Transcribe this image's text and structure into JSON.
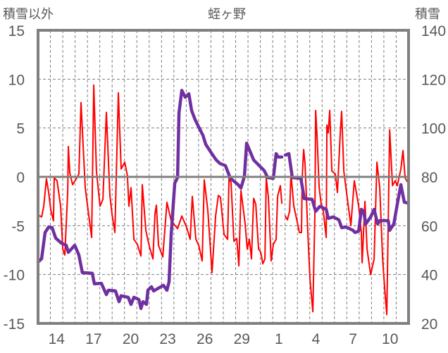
{
  "chart_data": {
    "type": "line",
    "title": "蛭ヶ野",
    "ylabel_left": "積雪以外",
    "ylabel_right": "積雪",
    "x_unit": "days from start of plotted range (first day = 13)",
    "xlim": [
      0,
      30
    ],
    "ylim_left": [
      -15,
      15
    ],
    "ylim_right": [
      20,
      140
    ],
    "yticks_left": [
      "15",
      "10",
      "5",
      "0",
      "-5",
      "-10",
      "-15"
    ],
    "yticks_right": [
      "140",
      "120",
      "100",
      "80",
      "60",
      "40",
      "20"
    ],
    "xtick_labels": [
      {
        "day": 1.5,
        "label": "14"
      },
      {
        "day": 4.5,
        "label": "17"
      },
      {
        "day": 7.5,
        "label": "20"
      },
      {
        "day": 10.5,
        "label": "23"
      },
      {
        "day": 13.5,
        "label": "26"
      },
      {
        "day": 16.5,
        "label": "29"
      },
      {
        "day": 19.5,
        "label": "1"
      },
      {
        "day": 22.5,
        "label": "4"
      },
      {
        "day": 25.5,
        "label": "7"
      },
      {
        "day": 28.5,
        "label": "10"
      }
    ],
    "grid": true,
    "colors": {
      "frame": "#808080",
      "grid": "#7f7f7f",
      "text": "#595959"
    },
    "series": [
      {
        "name": "積雪以外",
        "axis": "left",
        "color": "#ff0000",
        "points": [
          [
            0,
            -3.9
          ],
          [
            0.29,
            -4.1
          ],
          [
            0.46,
            -3.0
          ],
          [
            0.68,
            -0.2
          ],
          [
            0.86,
            -1.6
          ],
          [
            1.03,
            -3.4
          ],
          [
            1.25,
            -4.5
          ],
          [
            1.31,
            -0.1
          ],
          [
            1.54,
            -0.4
          ],
          [
            1.83,
            -3.0
          ],
          [
            2.0,
            -7.4
          ],
          [
            2.17,
            -8.0
          ],
          [
            2.4,
            -1.6
          ],
          [
            2.45,
            3.1
          ],
          [
            2.57,
            0.4
          ],
          [
            2.8,
            -0.8
          ],
          [
            3.14,
            -0.1
          ],
          [
            3.31,
            0.3
          ],
          [
            3.48,
            7.6
          ],
          [
            3.82,
            -1.1
          ],
          [
            4.11,
            -4.0
          ],
          [
            4.34,
            -6.2
          ],
          [
            4.51,
            9.4
          ],
          [
            4.73,
            0.6
          ],
          [
            5.02,
            -3.0
          ],
          [
            5.25,
            -2.3
          ],
          [
            5.53,
            6.6
          ],
          [
            5.82,
            -1.9
          ],
          [
            5.99,
            -3.8
          ],
          [
            6.22,
            -5.7
          ],
          [
            6.5,
            8.6
          ],
          [
            6.73,
            0.8
          ],
          [
            7.02,
            1.5
          ],
          [
            7.24,
            0.1
          ],
          [
            7.36,
            -3.0
          ],
          [
            7.53,
            -1.1
          ],
          [
            7.76,
            -6.4
          ],
          [
            8.04,
            -6.9
          ],
          [
            8.33,
            -8.1
          ],
          [
            8.44,
            -0.8
          ],
          [
            8.73,
            -5.5
          ],
          [
            9.01,
            -7.1
          ],
          [
            9.3,
            -8.4
          ],
          [
            9.47,
            -3.8
          ],
          [
            9.58,
            -2.9
          ],
          [
            9.75,
            -7.0
          ],
          [
            10.1,
            -8.2
          ],
          [
            10.44,
            -2.6
          ],
          [
            10.78,
            -4.5
          ],
          [
            11.3,
            -5.3
          ],
          [
            11.64,
            -4.0
          ],
          [
            12.04,
            -5.2
          ],
          [
            12.32,
            -6.4
          ],
          [
            12.49,
            -2.0
          ],
          [
            12.78,
            -6.4
          ],
          [
            13.01,
            -7.0
          ],
          [
            13.29,
            -8.6
          ],
          [
            13.46,
            -0.3
          ],
          [
            13.75,
            -3.5
          ],
          [
            14.09,
            -9.8
          ],
          [
            14.38,
            -4.0
          ],
          [
            14.6,
            -1.9
          ],
          [
            14.77,
            -2.1
          ],
          [
            15.06,
            -5.9
          ],
          [
            15.35,
            -6.4
          ],
          [
            15.46,
            -0.1
          ],
          [
            15.63,
            -0.6
          ],
          [
            15.86,
            -6.6
          ],
          [
            16.09,
            -6.3
          ],
          [
            16.26,
            -9.1
          ],
          [
            16.43,
            -1.4
          ],
          [
            16.77,
            -4.8
          ],
          [
            16.94,
            -7.4
          ],
          [
            17.11,
            -6.4
          ],
          [
            17.28,
            -8.4
          ],
          [
            17.46,
            -2.2
          ],
          [
            17.63,
            -2.8
          ],
          [
            17.86,
            -7.4
          ],
          [
            18.03,
            -7.7
          ],
          [
            18.2,
            -8.9
          ],
          [
            18.37,
            -8.4
          ],
          [
            18.48,
            -0.1
          ],
          [
            18.65,
            -2.1
          ],
          [
            18.88,
            -8.6
          ],
          [
            19.05,
            -6.9
          ],
          [
            19.28,
            -6.4
          ],
          [
            19.4,
            -2.0
          ],
          [
            19.62,
            -0.9
          ],
          [
            19.74,
            -2.7
          ],
          null,
          [
            20.02,
            -4.0
          ],
          [
            20.19,
            -4.4
          ],
          [
            20.37,
            -3.5
          ],
          [
            20.48,
            0.3
          ],
          [
            20.71,
            -3.0
          ],
          [
            20.94,
            -4.3
          ],
          [
            21.16,
            -5.7
          ],
          [
            21.33,
            -5.7
          ],
          [
            21.39,
            -0.1
          ],
          [
            21.51,
            2.8
          ],
          [
            21.62,
            1.3
          ],
          [
            21.85,
            -5.9
          ],
          [
            22.02,
            -10.5
          ],
          [
            22.25,
            -13.8
          ],
          [
            22.42,
            -3.5
          ],
          [
            22.48,
            6.8
          ],
          [
            22.59,
            4.2
          ],
          [
            22.76,
            -1.1
          ],
          [
            22.93,
            -2.8
          ],
          [
            23.1,
            -3.5
          ],
          [
            23.33,
            -6.2
          ],
          [
            23.39,
            5.3
          ],
          [
            23.5,
            4.5
          ],
          [
            23.62,
            6.8
          ],
          [
            23.79,
            0.6
          ],
          [
            24.07,
            0.3
          ],
          [
            24.24,
            -1.6
          ],
          [
            24.47,
            4.4
          ],
          [
            24.58,
            6.7
          ],
          [
            24.76,
            0.6
          ],
          [
            24.93,
            -1.1
          ],
          [
            25.1,
            -2.8
          ],
          [
            25.33,
            -5.0
          ],
          [
            25.61,
            -0.4
          ],
          [
            25.96,
            -3.0
          ],
          [
            26.18,
            -5.7
          ],
          [
            26.24,
            -8.8
          ],
          [
            26.47,
            -2.5
          ],
          [
            26.64,
            -7.4
          ],
          [
            26.93,
            -10.0
          ],
          [
            27.21,
            -8.4
          ],
          [
            27.44,
            1.5
          ],
          [
            27.67,
            -1.1
          ],
          [
            27.9,
            -8.4
          ],
          [
            28.07,
            -11.5
          ],
          [
            28.24,
            -14.1
          ],
          [
            28.47,
            4.8
          ],
          [
            28.7,
            -0.9
          ],
          [
            28.92,
            -0.4
          ],
          [
            29.09,
            -0.9
          ],
          [
            29.38,
            0.8
          ],
          [
            29.55,
            2.7
          ],
          [
            29.72,
            -0.1
          ],
          [
            29.95,
            -0.6
          ]
        ]
      },
      {
        "name": "積雪",
        "axis": "right",
        "color": "#7030a0",
        "points": [
          [
            0,
            45.1
          ],
          [
            0.29,
            46.5
          ],
          [
            0.57,
            57.2
          ],
          [
            0.86,
            59.5
          ],
          [
            1.14,
            59.2
          ],
          [
            1.43,
            54.9
          ],
          [
            1.88,
            52.9
          ],
          [
            2.28,
            52.0
          ],
          [
            2.45,
            49.1
          ],
          [
            2.97,
            52.0
          ],
          [
            3.31,
            48.0
          ],
          [
            3.59,
            40.8
          ],
          [
            4.39,
            40.5
          ],
          [
            4.56,
            36.2
          ],
          [
            5.13,
            36.4
          ],
          [
            5.53,
            31.8
          ],
          [
            5.7,
            33.6
          ],
          [
            6.27,
            33.3
          ],
          [
            6.56,
            28.9
          ],
          [
            6.73,
            31.3
          ],
          [
            7.3,
            30.7
          ],
          [
            7.53,
            27.8
          ],
          [
            7.76,
            30.7
          ],
          [
            8.16,
            29.8
          ],
          [
            8.33,
            26.1
          ],
          [
            8.5,
            28.9
          ],
          [
            8.78,
            27.8
          ],
          [
            8.9,
            33.6
          ],
          [
            9.18,
            35.0
          ],
          [
            9.36,
            33.3
          ],
          [
            9.64,
            34.1
          ],
          [
            10.15,
            35.6
          ],
          [
            10.44,
            33.6
          ],
          [
            10.61,
            37.0
          ],
          [
            10.78,
            56.3
          ],
          [
            11.07,
            77.4
          ],
          [
            11.3,
            79.7
          ],
          [
            11.41,
            106.2
          ],
          [
            11.64,
            115.4
          ],
          [
            11.92,
            112.6
          ],
          [
            12.21,
            114.0
          ],
          [
            12.44,
            107.1
          ],
          [
            12.72,
            103.4
          ],
          [
            13.06,
            99.9
          ],
          [
            13.35,
            97.0
          ],
          [
            13.58,
            93.3
          ],
          [
            14.03,
            89.8
          ],
          [
            14.43,
            86.9
          ],
          [
            14.72,
            85.5
          ],
          [
            15.17,
            84.6
          ],
          [
            15.57,
            79.4
          ],
          [
            15.92,
            78.0
          ],
          [
            16.2,
            76.8
          ],
          [
            16.43,
            75.4
          ],
          [
            16.71,
            80.3
          ],
          [
            16.89,
            93.8
          ],
          [
            17.17,
            90.4
          ],
          [
            17.46,
            86.9
          ],
          [
            17.91,
            84.6
          ],
          [
            18.31,
            82.6
          ],
          [
            18.6,
            79.7
          ],
          [
            19.05,
            79.4
          ],
          [
            19.28,
            89.5
          ],
          [
            19.45,
            88.1
          ],
          [
            19.74,
            88.1
          ],
          null,
          [
            20.02,
            88.9
          ],
          [
            20.31,
            89.5
          ],
          [
            20.59,
            79.7
          ],
          [
            21.28,
            79.4
          ],
          [
            21.56,
            71.1
          ],
          [
            22.19,
            70.8
          ],
          [
            22.48,
            65.9
          ],
          [
            22.82,
            67.9
          ],
          [
            23.33,
            66.7
          ],
          [
            23.5,
            63.0
          ],
          [
            23.9,
            63.6
          ],
          [
            24.36,
            62.4
          ],
          [
            24.59,
            59.2
          ],
          [
            24.93,
            59.5
          ],
          [
            25.5,
            58.1
          ],
          [
            25.67,
            57.2
          ],
          [
            25.96,
            57.8
          ],
          [
            26.18,
            66.7
          ],
          [
            26.36,
            65.9
          ],
          [
            26.53,
            60.7
          ],
          [
            26.93,
            63.6
          ],
          [
            27.21,
            66.7
          ],
          [
            27.5,
            60.7
          ],
          [
            27.67,
            62.1
          ],
          [
            28.35,
            62.1
          ],
          [
            28.47,
            58.1
          ],
          [
            28.81,
            60.7
          ],
          [
            29.09,
            68.8
          ],
          [
            29.38,
            76.8
          ],
          [
            29.66,
            69.6
          ],
          [
            29.95,
            69.3
          ]
        ]
      }
    ]
  }
}
